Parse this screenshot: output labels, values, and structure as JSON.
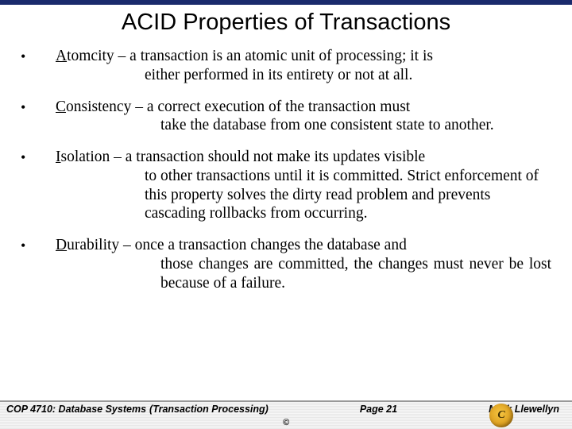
{
  "colors": {
    "top_bar": "#1a2a6c",
    "text": "#000000",
    "background": "#ffffff",
    "footer_border": "#999999",
    "logo_gradient": [
      "#f5c542",
      "#d99a1a",
      "#8a5a0a"
    ]
  },
  "typography": {
    "title_family": "Arial",
    "body_family": "Times New Roman",
    "title_size_pt": 22,
    "body_size_pt": 15,
    "footer_size_pt": 9
  },
  "title": "ACID Properties of Transactions",
  "bullets": [
    {
      "term": "A",
      "rest_first": "tomcity – a transaction is an atomic unit of processing; it is",
      "cont": "either performed in its entirety or not at all.",
      "justify": false,
      "hang_class": "hang"
    },
    {
      "term": "C",
      "rest_first": "onsistency  –  a  correct  execution  of  the  transaction  must",
      "cont": "take the database from one consistent state to another.",
      "justify": true,
      "hang_class": "hang short"
    },
    {
      "term": "I",
      "rest_first": "solation – a transaction should not make its updates visible",
      "cont": "to other transactions until it is committed.  Strict enforcement of this property solves the dirty read problem and prevents cascading rollbacks from occurring.",
      "justify": false,
      "hang_class": "hang"
    },
    {
      "term": "D",
      "rest_first": "urability  –  once  a  transaction  changes  the  database  and",
      "cont": "those changes are committed, the changes must never be lost because of a failure.",
      "justify": true,
      "hang_class": "hang short"
    }
  ],
  "footer": {
    "course": "COP 4710: Database Systems",
    "topic": "(Transaction Processing)",
    "page": "Page 21",
    "author": "Mark Llewellyn",
    "copyright": "©",
    "logo_letter": "C"
  }
}
